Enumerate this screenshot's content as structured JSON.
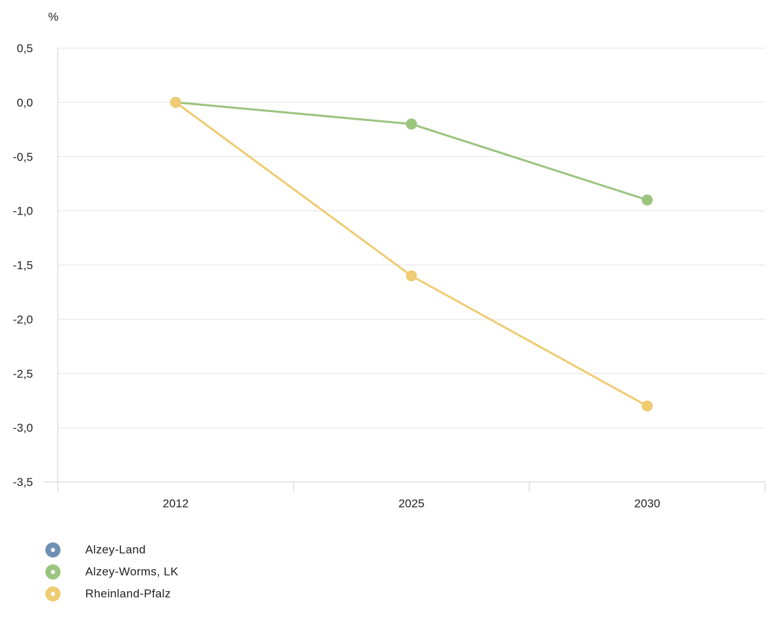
{
  "chart_data": {
    "type": "line",
    "ylabel": "%",
    "ylim": [
      -3.5,
      0.5
    ],
    "yticks": [
      "0,5",
      "0,0",
      "-0,5",
      "-1,0",
      "-1,5",
      "-2,0",
      "-2,5",
      "-3,0",
      "-3,5"
    ],
    "ytick_values": [
      0.5,
      0.0,
      -0.5,
      -1.0,
      -1.5,
      -2.0,
      -2.5,
      -3.0,
      -3.5
    ],
    "categories": [
      "2012",
      "2025",
      "2030"
    ],
    "grid": true,
    "legend_position": "bottom-left",
    "series": [
      {
        "name": "Alzey-Land",
        "color": "#6f8fb3",
        "values": [
          null,
          null,
          null
        ]
      },
      {
        "name": "Alzey-Worms, LK",
        "color": "#9bc47f",
        "values": [
          0.0,
          -0.2,
          -0.9
        ]
      },
      {
        "name": "Rheinland-Pfalz",
        "color": "#efcb72",
        "values": [
          0.0,
          -1.6,
          -2.8
        ]
      }
    ]
  }
}
